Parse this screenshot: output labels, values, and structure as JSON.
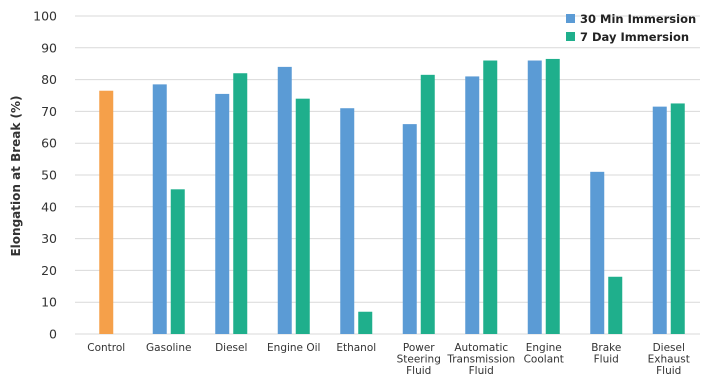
{
  "chart_data": {
    "type": "bar",
    "title": "",
    "xlabel": "",
    "ylabel": "Elongation at Break (%)",
    "ylim": [
      0,
      100
    ],
    "yticks": [
      0,
      10,
      20,
      30,
      40,
      50,
      60,
      70,
      80,
      90,
      100
    ],
    "grid": true,
    "legend_position": "top-right",
    "categories": [
      "Control",
      "Gasoline",
      "Diesel",
      "Engine Oil",
      "Ethanol",
      "Power Steering Fluid",
      "Automatic Transmission Fluid",
      "Engine Coolant",
      "Brake Fluid",
      "Diesel Exhaust Fluid"
    ],
    "category_lines": [
      [
        "Control"
      ],
      [
        "Gasoline"
      ],
      [
        "Diesel"
      ],
      [
        "Engine Oil"
      ],
      [
        "Ethanol"
      ],
      [
        "Power",
        "Steering",
        "Fluid"
      ],
      [
        "Automatic",
        "Transmission",
        "Fluid"
      ],
      [
        "Engine",
        "Coolant"
      ],
      [
        "Brake",
        "Fluid"
      ],
      [
        "Diesel",
        "Exhaust",
        "Fluid"
      ]
    ],
    "control": {
      "value": 76.5,
      "color": "#F5A04A"
    },
    "series": [
      {
        "name": "30 Min Immersion",
        "color": "#5B9BD5",
        "values": [
          null,
          78.5,
          75.5,
          84,
          71,
          66,
          81,
          86,
          51,
          71.5
        ]
      },
      {
        "name": "7 Day Immersion",
        "color": "#1FAF8C",
        "values": [
          null,
          45.5,
          82,
          74,
          7,
          81.5,
          86,
          86.5,
          18,
          72.5
        ]
      }
    ]
  }
}
